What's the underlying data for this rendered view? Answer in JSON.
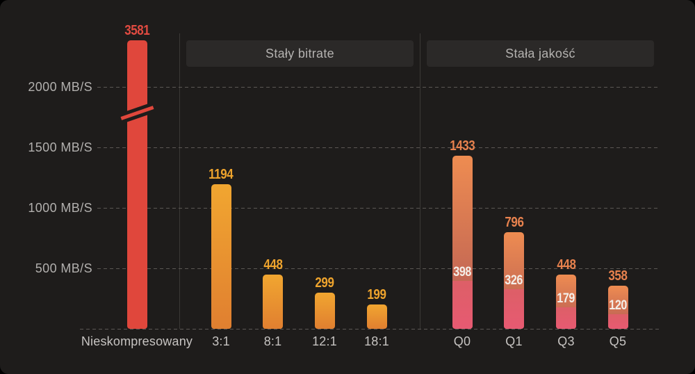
{
  "chart_data": {
    "type": "bar",
    "title": "",
    "unit": "MB/S",
    "y_axis": {
      "ticks": [
        {
          "value": 2000,
          "label": "2000 MB/S"
        },
        {
          "value": 1500,
          "label": "1500 MB/S"
        },
        {
          "value": 1000,
          "label": "1000 MB/S"
        },
        {
          "value": 500,
          "label": "500 MB/S"
        }
      ],
      "axis_break": true,
      "grid": "dashed horizontal lines"
    },
    "groups": [
      {
        "header": "",
        "bars": [
          {
            "category": "Nieskompresowany",
            "value": 3581,
            "palette": "red",
            "axis_break": true
          }
        ]
      },
      {
        "header": "Stały bitrate",
        "bars": [
          {
            "category": "3:1",
            "value": 1194,
            "palette": "amber"
          },
          {
            "category": "8:1",
            "value": 448,
            "palette": "amber"
          },
          {
            "category": "12:1",
            "value": 299,
            "palette": "amber"
          },
          {
            "category": "18:1",
            "value": 199,
            "palette": "amber"
          }
        ]
      },
      {
        "header": "Stała jakość",
        "bars": [
          {
            "category": "Q0",
            "value": 1433,
            "sub_value": 398,
            "palette": "warm"
          },
          {
            "category": "Q1",
            "value": 796,
            "sub_value": 326,
            "palette": "warm"
          },
          {
            "category": "Q3",
            "value": 448,
            "sub_value": 179,
            "palette": "warm"
          },
          {
            "category": "Q5",
            "value": 358,
            "sub_value": 120,
            "palette": "warm"
          }
        ]
      }
    ],
    "colors": {
      "bg": "#1e1c1b",
      "red-bar": "#e0473c",
      "amber-top": "#f1a630",
      "amber-bottom": "#e07f30",
      "warm-top": "#ee8c51",
      "warm-mid": "#b45a55",
      "pink-top": "#dd5f67",
      "pink-bottom": "#e75a72",
      "red-label": "#e14b41",
      "amber-label": "#efa42d",
      "orange-label": "#e8824e",
      "white-label": "#f4eee8",
      "axis-text": "#b2b0ae",
      "category-text": "#c6c3c1",
      "header-text": "#b4b2b0",
      "header-bg": "#2b2928",
      "gridline": "#5c5855",
      "divider": "#3b3937"
    }
  }
}
